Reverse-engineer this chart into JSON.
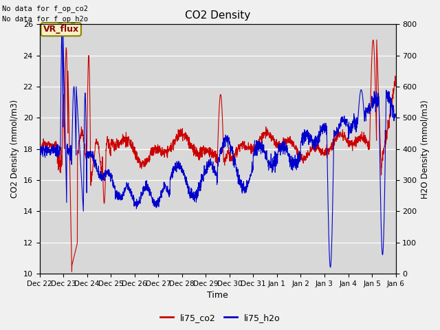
{
  "title": "CO2 Density",
  "xlabel": "Time",
  "ylabel_left": "CO2 Density (mmol/m3)",
  "ylabel_right": "H2O Density (mmol/m3)",
  "legend_labels": [
    "li75_co2",
    "li75_h2o"
  ],
  "top_text_1": "No data for f_op_co2",
  "top_text_2": "No data for f_op_h2o",
  "annotation": "VR_flux",
  "ylim_left": [
    10,
    26
  ],
  "ylim_right": [
    0,
    800
  ],
  "yticks_left": [
    10,
    12,
    14,
    16,
    18,
    20,
    22,
    24,
    26
  ],
  "yticks_right": [
    0,
    100,
    200,
    300,
    400,
    500,
    600,
    700,
    800
  ],
  "fig_bg_color": "#f0f0f0",
  "plot_bg_color": "#d8d8d8",
  "line_color_co2": "#cc0000",
  "line_color_h2o": "#0000cc",
  "line_width": 0.8
}
